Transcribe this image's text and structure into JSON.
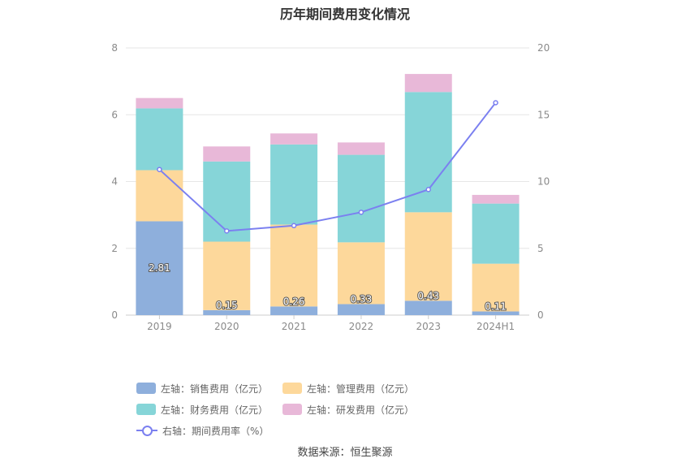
{
  "title": "历年期间费用变化情况",
  "source": "数据来源：恒生聚源",
  "colors": {
    "sales": "#8eafdc",
    "admin": "#fdd89b",
    "finance": "#86d5d8",
    "rd": "#e8b8d8",
    "rate": "#7b80f0",
    "grid": "#e6e6e6"
  },
  "legend": [
    {
      "key": "sales",
      "label": "左轴：销售费用（亿元）",
      "kind": "bar"
    },
    {
      "key": "admin",
      "label": "左轴：管理费用（亿元）",
      "kind": "bar"
    },
    {
      "key": "finance",
      "label": "左轴：财务费用（亿元）",
      "kind": "bar"
    },
    {
      "key": "rd",
      "label": "左轴：研发费用（亿元）",
      "kind": "bar"
    },
    {
      "key": "rate",
      "label": "右轴：期间费用率（%）",
      "kind": "line"
    }
  ],
  "chart_data": {
    "type": "bar",
    "stacked": true,
    "categories": [
      "2019",
      "2020",
      "2021",
      "2022",
      "2023",
      "2024H1"
    ],
    "series": [
      {
        "key": "sales",
        "name": "左轴：销售费用（亿元）",
        "axis": "left",
        "values": [
          2.81,
          0.15,
          0.26,
          0.33,
          0.43,
          0.11
        ],
        "labels": [
          "2.81",
          "0.15",
          "0.26",
          "0.33",
          "0.43",
          "0.11"
        ]
      },
      {
        "key": "admin",
        "name": "左轴：管理费用（亿元）",
        "axis": "left",
        "values": [
          1.53,
          2.05,
          2.45,
          1.85,
          2.65,
          1.43
        ]
      },
      {
        "key": "finance",
        "name": "左轴：财务费用（亿元）",
        "axis": "left",
        "values": [
          1.85,
          2.4,
          2.4,
          2.62,
          3.6,
          1.8
        ]
      },
      {
        "key": "rd",
        "name": "左轴：研发费用（亿元）",
        "axis": "left",
        "values": [
          0.31,
          0.45,
          0.33,
          0.37,
          0.54,
          0.26
        ]
      },
      {
        "key": "rate",
        "name": "右轴：期间费用率（%）",
        "axis": "right",
        "type": "line",
        "values": [
          10.9,
          6.3,
          6.7,
          7.7,
          9.4,
          15.9
        ]
      }
    ],
    "left_axis": {
      "min": 0,
      "max": 8,
      "ticks": [
        "0",
        "2",
        "4",
        "6",
        "8"
      ]
    },
    "right_axis": {
      "min": 0,
      "max": 20,
      "ticks": [
        "0",
        "5",
        "10",
        "15",
        "20"
      ]
    },
    "grid": true,
    "legend_position": "bottom"
  }
}
